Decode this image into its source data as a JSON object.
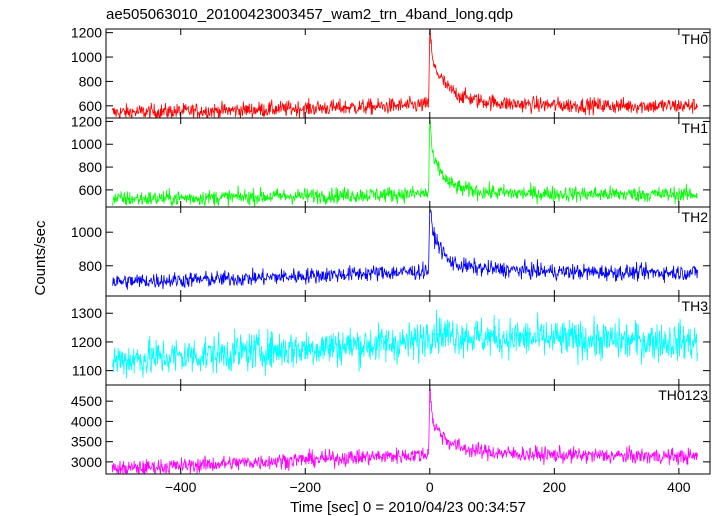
{
  "chart_data": {
    "type": "line",
    "title": "ae505063010_20100423003457_wam2_trn_4band_long.qdp",
    "xlabel": "Time [sec] 0 = 2010/04/23 00:34:57",
    "ylabel": "Counts/sec",
    "xlim": [
      -520,
      450
    ],
    "x_ticks": [
      -400,
      -200,
      0,
      200,
      400
    ],
    "grid": false,
    "panels": [
      {
        "name": "TH0",
        "color": "#ff0000",
        "ylim": [
          500,
          1230
        ],
        "y_ticks": [
          600,
          800,
          1000,
          1200
        ],
        "series_points": [
          [
            -510,
            545
          ],
          [
            -400,
            555
          ],
          [
            -300,
            565
          ],
          [
            -200,
            580
          ],
          [
            -100,
            590
          ],
          [
            -20,
            605
          ],
          [
            -2,
            610
          ],
          [
            0,
            1230
          ],
          [
            5,
            940
          ],
          [
            15,
            850
          ],
          [
            30,
            740
          ],
          [
            50,
            680
          ],
          [
            80,
            640
          ],
          [
            130,
            615
          ],
          [
            200,
            605
          ],
          [
            300,
            600
          ],
          [
            430,
            600
          ]
        ]
      },
      {
        "name": "TH1",
        "color": "#00ff00",
        "ylim": [
          450,
          1230
        ],
        "y_ticks": [
          600,
          800,
          1000,
          1200
        ],
        "series_points": [
          [
            -510,
            520
          ],
          [
            -400,
            528
          ],
          [
            -300,
            538
          ],
          [
            -200,
            548
          ],
          [
            -100,
            556
          ],
          [
            -20,
            565
          ],
          [
            -2,
            570
          ],
          [
            0,
            1230
          ],
          [
            5,
            870
          ],
          [
            15,
            780
          ],
          [
            30,
            660
          ],
          [
            50,
            610
          ],
          [
            80,
            585
          ],
          [
            130,
            570
          ],
          [
            200,
            565
          ],
          [
            300,
            562
          ],
          [
            430,
            560
          ]
        ]
      },
      {
        "name": "TH2",
        "color": "#0000ff",
        "ylim": [
          620,
          1150
        ],
        "y_ticks": [
          800,
          1000
        ],
        "series_points": [
          [
            -510,
            705
          ],
          [
            -400,
            715
          ],
          [
            -300,
            725
          ],
          [
            -200,
            740
          ],
          [
            -100,
            755
          ],
          [
            -20,
            765
          ],
          [
            -2,
            770
          ],
          [
            0,
            1150
          ],
          [
            5,
            990
          ],
          [
            15,
            920
          ],
          [
            30,
            830
          ],
          [
            50,
            800
          ],
          [
            80,
            785
          ],
          [
            130,
            775
          ],
          [
            200,
            765
          ],
          [
            300,
            760
          ],
          [
            430,
            760
          ]
        ]
      },
      {
        "name": "TH3",
        "color": "#00ffff",
        "ylim": [
          1050,
          1360
        ],
        "y_ticks": [
          1100,
          1200,
          1300
        ],
        "series_points": [
          [
            -510,
            1135
          ],
          [
            -400,
            1150
          ],
          [
            -300,
            1165
          ],
          [
            -200,
            1178
          ],
          [
            -100,
            1190
          ],
          [
            -20,
            1200
          ],
          [
            0,
            1235
          ],
          [
            30,
            1225
          ],
          [
            100,
            1215
          ],
          [
            200,
            1210
          ],
          [
            300,
            1205
          ],
          [
            430,
            1200
          ]
        ]
      },
      {
        "name": "TH0123",
        "color": "#ff00ff",
        "ylim": [
          2700,
          4900
        ],
        "y_ticks": [
          3000,
          3500,
          4000,
          4500
        ],
        "series_points": [
          [
            -510,
            2820
          ],
          [
            -400,
            2900
          ],
          [
            -300,
            2980
          ],
          [
            -200,
            3060
          ],
          [
            -100,
            3120
          ],
          [
            -20,
            3170
          ],
          [
            -2,
            3180
          ],
          [
            0,
            4900
          ],
          [
            5,
            3950
          ],
          [
            15,
            3750
          ],
          [
            30,
            3500
          ],
          [
            50,
            3350
          ],
          [
            80,
            3260
          ],
          [
            130,
            3200
          ],
          [
            200,
            3170
          ],
          [
            300,
            3150
          ],
          [
            430,
            3130
          ]
        ]
      }
    ]
  }
}
